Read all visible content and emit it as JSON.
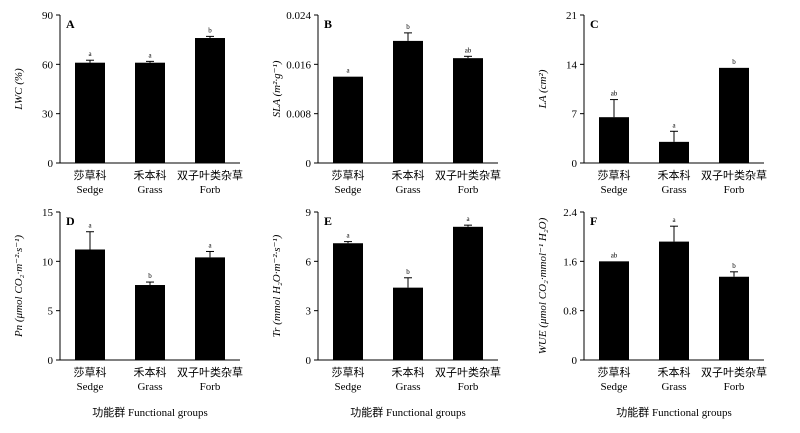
{
  "chart_data": [
    {
      "type": "bar",
      "panel": "A",
      "ylabel": "LWC (%)",
      "ylim": [
        0,
        90
      ],
      "yticks": [
        0,
        30,
        60,
        90
      ],
      "categories": [
        "莎草科\nSedge",
        "禾本科\nGrass",
        "双子叶类杂草\nForb"
      ],
      "values": [
        61,
        61,
        76
      ],
      "errors": [
        1.5,
        0.8,
        1.0
      ],
      "significance": [
        "a",
        "a",
        "b"
      ],
      "xlabel": ""
    },
    {
      "type": "bar",
      "panel": "B",
      "ylabel": "SLA (m²·g⁻¹)",
      "ylim": [
        0,
        0.024
      ],
      "yticks": [
        "0",
        "0.008",
        "0.016",
        "0.024"
      ],
      "categories": [
        "莎草科\nSedge",
        "禾本科\nGrass",
        "双子叶类杂草\nForb"
      ],
      "values": [
        0.014,
        0.0198,
        0.017
      ],
      "errors": [
        0.0,
        0.0013,
        0.0003
      ],
      "significance": [
        "a",
        "b",
        "ab"
      ],
      "xlabel": ""
    },
    {
      "type": "bar",
      "panel": "C",
      "ylabel": "LA (cm²)",
      "ylim": [
        0,
        21
      ],
      "yticks": [
        0,
        7,
        14,
        21
      ],
      "categories": [
        "莎草科\nSedge",
        "禾本科\nGrass",
        "双子叶类杂草\nForb"
      ],
      "values": [
        6.5,
        3.0,
        13.5
      ],
      "errors": [
        2.5,
        1.5,
        0.0
      ],
      "significance": [
        "ab",
        "a",
        "b"
      ],
      "xlabel": ""
    },
    {
      "type": "bar",
      "panel": "D",
      "ylabel": "Pn (μmol CO₂·m⁻²·s⁻¹)",
      "ylim": [
        0,
        15
      ],
      "yticks": [
        0,
        5,
        10,
        15
      ],
      "categories": [
        "莎草科\nSedge",
        "禾本科\nGrass",
        "双子叶类杂草\nForb"
      ],
      "values": [
        11.2,
        7.6,
        10.4
      ],
      "errors": [
        1.8,
        0.3,
        0.6
      ],
      "significance": [
        "a",
        "b",
        "a"
      ],
      "xlabel": "功能群 Functional groups"
    },
    {
      "type": "bar",
      "panel": "E",
      "ylabel": "Tr (mmol H₂O·m⁻²·s⁻¹)",
      "ylim": [
        0,
        9
      ],
      "yticks": [
        0,
        3,
        6,
        9
      ],
      "categories": [
        "莎草科\nSedge",
        "禾本科\nGrass",
        "双子叶类杂草\nForb"
      ],
      "values": [
        7.1,
        4.4,
        8.1
      ],
      "errors": [
        0.1,
        0.6,
        0.1
      ],
      "significance": [
        "a",
        "b",
        "a"
      ],
      "xlabel": "功能群 Functional groups"
    },
    {
      "type": "bar",
      "panel": "F",
      "ylabel": "WUE (μmol CO₂·mmol⁻¹ H₂O)",
      "ylim": [
        0,
        2.4
      ],
      "yticks": [
        "0",
        "0.8",
        "1.6",
        "2.4"
      ],
      "categories": [
        "莎草科\nSedge",
        "禾本科\nGrass",
        "双子叶类杂草\nForb"
      ],
      "values": [
        1.6,
        1.92,
        1.35
      ],
      "errors": [
        0.0,
        0.25,
        0.08
      ],
      "significance": [
        "ab",
        "a",
        "b"
      ],
      "xlabel": "功能群 Functional groups"
    }
  ]
}
